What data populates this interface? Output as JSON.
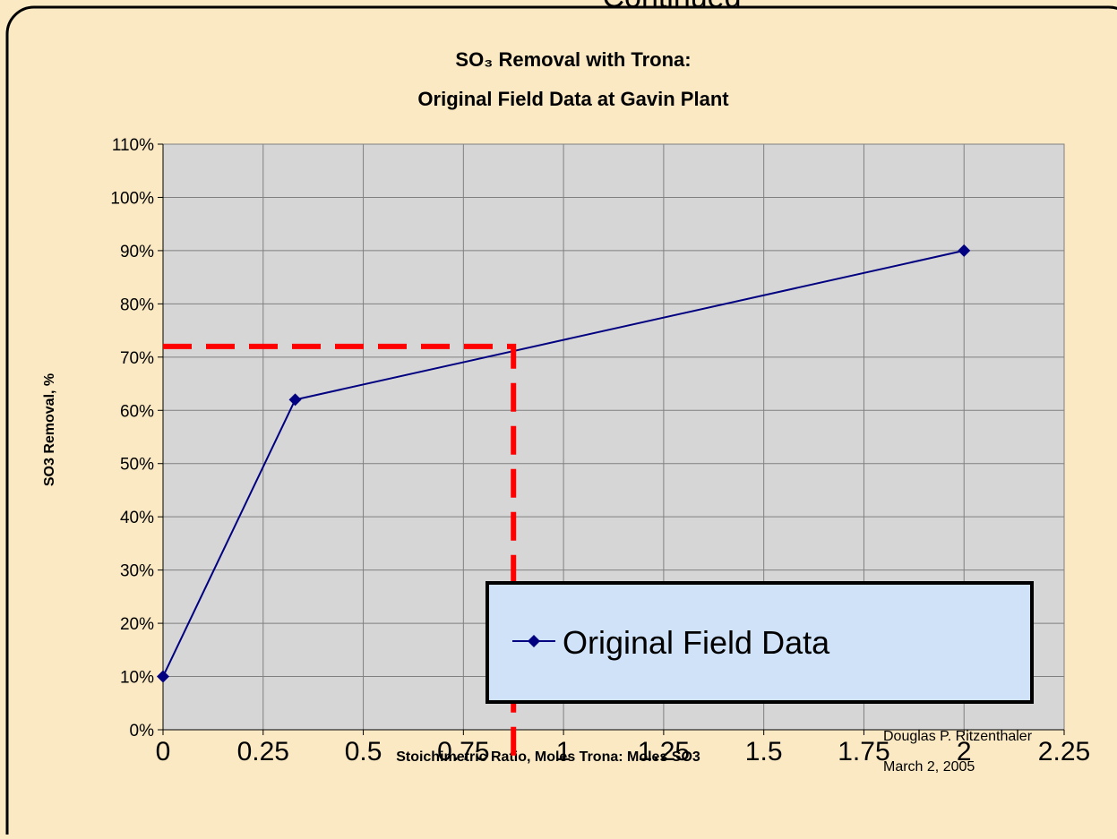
{
  "header": "Continued",
  "chart_data": {
    "type": "line",
    "title": [
      "SO₃ Removal with Trona:",
      "Original Field Data at Gavin Plant"
    ],
    "x_label": "Stoichimetric Ratio, Moles Trona: Moles SO3",
    "y_label": "SO3 Removal, %",
    "series": [
      {
        "name": "Original Field Data",
        "color": "#000080",
        "x": [
          0,
          0.33,
          2
        ],
        "values": [
          10,
          62,
          90
        ]
      }
    ],
    "xlim": [
      0,
      2.25
    ],
    "xticks": [
      0,
      0.25,
      0.5,
      0.75,
      1,
      1.25,
      1.5,
      1.75,
      2,
      2.25
    ],
    "ylim": [
      0,
      110
    ],
    "yticks": [
      {
        "value": 0,
        "label": "0%"
      },
      {
        "value": 10,
        "label": "10%"
      },
      {
        "value": 20,
        "label": "20%"
      },
      {
        "value": 30,
        "label": "30%"
      },
      {
        "value": 40,
        "label": "40%"
      },
      {
        "value": 50,
        "label": "50%"
      },
      {
        "value": 60,
        "label": "60%"
      },
      {
        "value": 70,
        "label": "70%"
      },
      {
        "value": 80,
        "label": "80%"
      },
      {
        "value": 90,
        "label": "90%"
      },
      {
        "value": 100,
        "label": "100%"
      },
      {
        "value": 110,
        "label": "110%"
      }
    ],
    "grid": true,
    "guide": {
      "x": 0.875,
      "y": 72,
      "color": "#ff0000"
    },
    "legend": "lower right"
  },
  "footer": {
    "author": "Douglas P. Ritzenthaler",
    "date": "March 2, 2005"
  }
}
